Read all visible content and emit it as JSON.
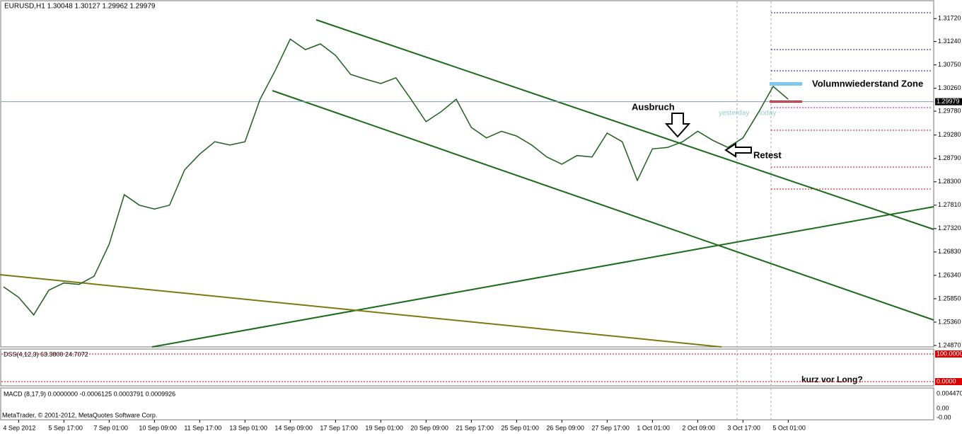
{
  "chart_data": {
    "type": "line",
    "title": "EURUSD,H1  1.30048 1.30127 1.29962 1.29979",
    "categories": [
      null,
      "4 Sep 2012",
      null,
      null,
      "5 Sep 17:00",
      null,
      null,
      "7 Sep 01:00",
      null,
      null,
      "10 Sep 09:00",
      null,
      null,
      "11 Sep 17:00",
      null,
      null,
      "13 Sep 01:00",
      null,
      null,
      "14 Sep 09:00",
      null,
      null,
      "17 Sep 17:00",
      null,
      null,
      "19 Sep 01:00",
      null,
      null,
      "20 Sep 09:00",
      null,
      null,
      "21 Sep 17:00",
      null,
      null,
      "25 Sep 01:00",
      null,
      null,
      "26 Sep 09:00",
      null,
      null,
      "27 Sep 17:00",
      null,
      null,
      "1 Oct 01:00",
      null,
      null,
      "2 Oct 09:00",
      null,
      null,
      "3 Oct 17:00",
      null,
      null,
      "5 Oct 01:00"
    ],
    "series": [
      {
        "color": "#1e5e1e",
        "values": [
          1.261,
          1.2588,
          1.2551,
          1.2603,
          1.2618,
          1.2615,
          1.2632,
          1.2699,
          1.2803,
          1.2781,
          1.2773,
          1.2781,
          1.2855,
          1.2888,
          1.2914,
          1.2907,
          1.2914,
          1.3003,
          1.3063,
          1.3129,
          1.3107,
          1.3119,
          1.3095,
          1.3055,
          1.3045,
          1.3036,
          1.3048,
          1.3003,
          1.2956,
          1.2977,
          1.3003,
          1.2944,
          1.2922,
          1.2936,
          1.2926,
          1.2907,
          1.2882,
          1.2867,
          1.2885,
          1.2882,
          1.2932,
          1.2914,
          1.2833,
          1.2899,
          1.2902,
          1.2914,
          1.2936,
          1.2917,
          1.2902,
          1.2922,
          1.2974,
          1.303,
          1.3003
        ]
      }
    ],
    "ylim": [
      1.2484,
      1.3211
    ],
    "yticks": [
      {
        "value": 1.3172,
        "label": "1.31720"
      },
      {
        "value": 1.3124,
        "label": "1.31240"
      },
      {
        "value": 1.3075,
        "label": "1.30750"
      },
      {
        "value": 1.3026,
        "label": "1.30260"
      },
      {
        "value": 1.2978,
        "label": "1.29780"
      },
      {
        "value": 1.2928,
        "label": "1.29280"
      },
      {
        "value": 1.2879,
        "label": "1.28790"
      },
      {
        "value": 1.283,
        "label": "1.28300"
      },
      {
        "value": 1.2781,
        "label": "1.27810"
      },
      {
        "value": 1.2732,
        "label": "1.27320"
      },
      {
        "value": 1.2683,
        "label": "1.26830"
      },
      {
        "value": 1.2634,
        "label": "1.26340"
      },
      {
        "value": 1.2585,
        "label": "1.25850"
      },
      {
        "value": 1.2536,
        "label": "1.25360"
      },
      {
        "value": 1.2487,
        "label": "1.24870"
      }
    ],
    "current_price": {
      "value": 1.29979,
      "label": "1.29979"
    },
    "annotations": {
      "zone": "Volumnwiederstand Zone",
      "breakout": "Ausbruch",
      "retest": "Retest",
      "yesterday": "yesterday",
      "today": "today",
      "question": "kurz vor Long?"
    },
    "dss": {
      "label": "DSS(4,12,3) 63.3800 24.7072",
      "top": "100.0000",
      "bottom": "0.0000"
    },
    "macd": {
      "label": "MACD (8,17,9) 0.0000000 -0.0006125 0.0003791 0.0009926",
      "top": "0.004470",
      "mid": "0.00",
      "bottom": "-0.00"
    },
    "footer": "MetaTrader, © 2001-2012, MetaQuotes Software Corp."
  }
}
